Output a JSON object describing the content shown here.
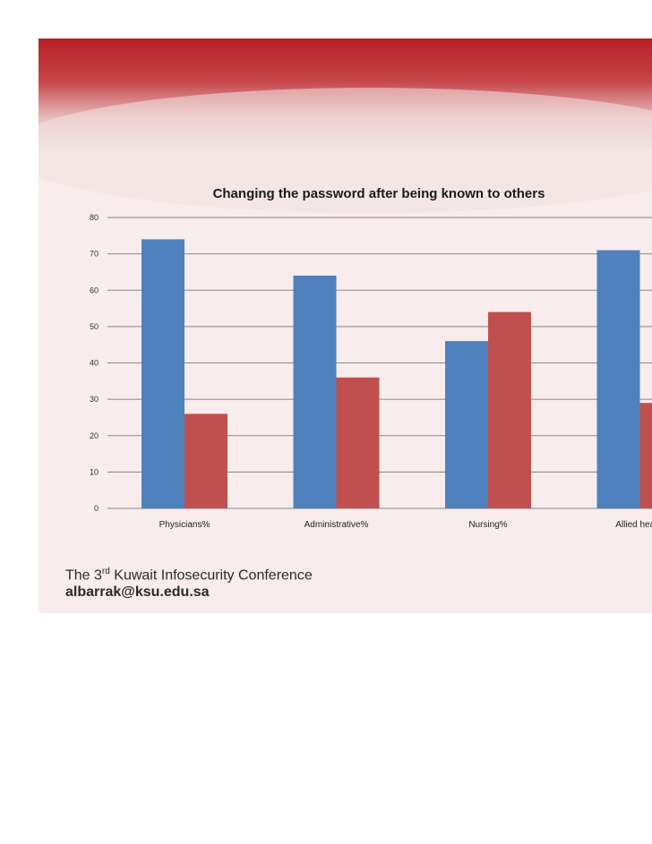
{
  "chart_data": {
    "type": "bar",
    "title": "Changing the password after being known to others",
    "categories": [
      "Physicians%",
      "Administrative%",
      "Nursing%",
      "Allied health"
    ],
    "series": [
      {
        "values": [
          74,
          64,
          46,
          71
        ],
        "color": "#4f81bd"
      },
      {
        "values": [
          26,
          36,
          54,
          29
        ],
        "color": "#c0504d"
      }
    ],
    "ylim": [
      0,
      80
    ],
    "yticks": [
      0,
      10,
      20,
      30,
      40,
      50,
      60,
      70,
      80
    ],
    "grid": true
  },
  "footer": {
    "conference_prefix": "The 3",
    "conference_sup": "rd",
    "conference_suffix": " Kuwait Infosecurity Conference",
    "email": "albarrak@ksu.edu.sa"
  },
  "colors": {
    "banner": "#b71f24",
    "background": "#f8ecec",
    "gridline": "#868686"
  }
}
